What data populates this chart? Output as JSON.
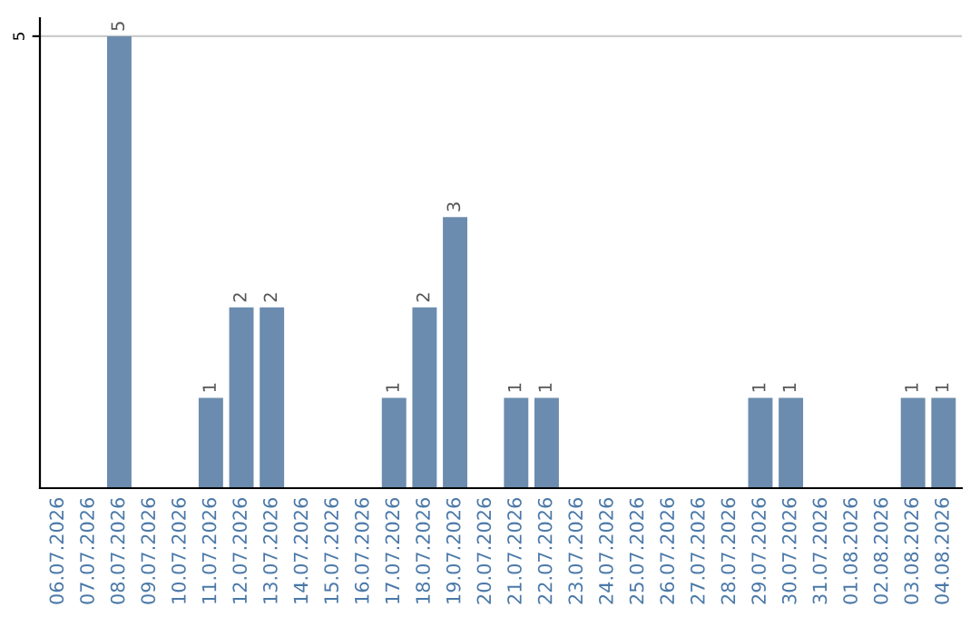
{
  "chart_data": {
    "type": "bar",
    "categories": [
      "06.07.2026",
      "07.07.2026",
      "08.07.2026",
      "09.07.2026",
      "10.07.2026",
      "11.07.2026",
      "12.07.2026",
      "13.07.2026",
      "14.07.2026",
      "15.07.2026",
      "16.07.2026",
      "17.07.2026",
      "18.07.2026",
      "19.07.2026",
      "20.07.2026",
      "21.07.2026",
      "22.07.2026",
      "23.07.2026",
      "24.07.2026",
      "25.07.2026",
      "26.07.2026",
      "27.07.2026",
      "28.07.2026",
      "29.07.2026",
      "30.07.2026",
      "31.07.2026",
      "01.08.2026",
      "02.08.2026",
      "03.08.2026",
      "04.08.2026"
    ],
    "values": [
      0,
      0,
      5,
      0,
      0,
      1,
      2,
      2,
      0,
      0,
      0,
      1,
      2,
      3,
      0,
      1,
      1,
      0,
      0,
      0,
      0,
      0,
      0,
      1,
      1,
      0,
      0,
      0,
      1,
      1
    ],
    "value_labels": [
      null,
      null,
      "5",
      null,
      null,
      "1",
      "2",
      "2",
      null,
      null,
      null,
      "1",
      "2",
      "3",
      null,
      "1",
      "1",
      null,
      null,
      null,
      null,
      null,
      null,
      "1",
      "1",
      null,
      null,
      null,
      "1",
      "1"
    ],
    "color": "#6b8cae",
    "ylim": [
      0,
      5.2
    ],
    "yticks": [
      5
    ],
    "grid": "y",
    "legend": false
  }
}
